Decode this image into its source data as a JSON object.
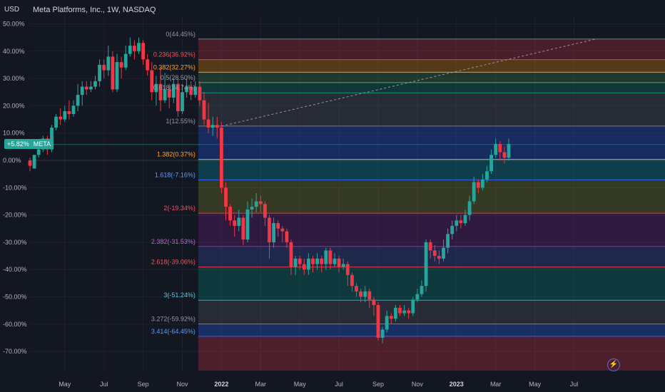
{
  "header": {
    "title": "Meta Platforms, Inc., 1W, NASDAQ",
    "currency": "USD"
  },
  "badge": {
    "value": "+5.82%",
    "symbol": "META"
  },
  "tv_icon": "lightning-icon",
  "chart_data": {
    "type": "candlestick",
    "y_unit": "percent",
    "ylim": [
      -77,
      50
    ],
    "y_ticks": [
      {
        "v": 50,
        "label": "50.00%"
      },
      {
        "v": 40,
        "label": "40.00%"
      },
      {
        "v": 30,
        "label": "30.00%"
      },
      {
        "v": 20,
        "label": "20.00%"
      },
      {
        "v": 10,
        "label": "10.00%"
      },
      {
        "v": 0,
        "label": "0.00%"
      },
      {
        "v": -10,
        "label": "-10.00%"
      },
      {
        "v": -20,
        "label": "-20.00%"
      },
      {
        "v": -30,
        "label": "-30.00%"
      },
      {
        "v": -40,
        "label": "-40.00%"
      },
      {
        "v": -50,
        "label": "-50.00%"
      },
      {
        "v": -60,
        "label": "-60.00%"
      },
      {
        "v": -70,
        "label": "-70.00%"
      }
    ],
    "x_ticks": [
      {
        "i": 8,
        "label": "May",
        "bold": false
      },
      {
        "i": 17,
        "label": "Jul",
        "bold": false
      },
      {
        "i": 26,
        "label": "Sep",
        "bold": false
      },
      {
        "i": 35,
        "label": "Nov",
        "bold": false
      },
      {
        "i": 44,
        "label": "2022",
        "bold": true
      },
      {
        "i": 53,
        "label": "Mar",
        "bold": false
      },
      {
        "i": 62,
        "label": "May",
        "bold": false
      },
      {
        "i": 71,
        "label": "Jul",
        "bold": false
      },
      {
        "i": 80,
        "label": "Sep",
        "bold": false
      },
      {
        "i": 89,
        "label": "Nov",
        "bold": false
      },
      {
        "i": 98,
        "label": "2023",
        "bold": true
      },
      {
        "i": 107,
        "label": "Mar",
        "bold": false
      },
      {
        "i": 116,
        "label": "May",
        "bold": false
      },
      {
        "i": 125,
        "label": "Jul",
        "bold": false
      }
    ],
    "current_value": 5.82,
    "candles": [
      [
        0,
        -2,
        1,
        -4,
        -3
      ],
      [
        -3,
        2,
        2,
        -3,
        -2
      ],
      [
        2,
        4,
        6,
        1,
        3
      ],
      [
        4,
        8,
        9,
        3,
        3
      ],
      [
        8,
        4,
        9,
        2,
        6
      ],
      [
        4,
        12,
        13,
        3,
        9
      ],
      [
        12,
        16,
        17,
        11,
        15
      ],
      [
        16,
        15,
        19,
        13,
        13
      ],
      [
        15,
        18,
        20,
        14,
        16
      ],
      [
        18,
        17,
        22,
        15,
        17
      ],
      [
        17,
        20,
        22,
        16,
        20
      ],
      [
        20,
        24,
        28,
        18,
        22
      ],
      [
        24,
        27,
        29,
        20,
        20
      ],
      [
        27,
        26,
        29,
        24,
        24
      ],
      [
        26,
        27,
        29,
        25,
        27
      ],
      [
        27,
        29,
        31,
        26,
        28
      ],
      [
        29,
        35,
        37,
        27,
        32
      ],
      [
        35,
        33,
        37,
        30,
        34
      ],
      [
        33,
        38,
        42,
        31,
        39
      ],
      [
        38,
        26,
        40,
        25,
        38
      ],
      [
        26,
        36,
        39,
        25,
        32
      ],
      [
        36,
        34,
        38,
        30,
        30
      ],
      [
        34,
        39,
        42,
        33,
        35
      ],
      [
        39,
        42,
        45,
        38,
        40
      ],
      [
        42,
        40,
        44,
        37,
        41
      ],
      [
        40,
        43,
        45,
        39,
        40
      ],
      [
        43,
        37,
        44,
        35,
        43
      ],
      [
        37,
        33,
        39,
        31,
        38
      ],
      [
        33,
        25,
        36,
        22,
        33
      ],
      [
        25,
        28,
        31,
        20,
        26
      ],
      [
        28,
        22,
        34,
        18,
        29
      ],
      [
        22,
        26,
        32,
        21,
        27
      ],
      [
        26,
        23,
        28,
        19,
        24
      ],
      [
        23,
        28,
        30,
        21,
        24
      ],
      [
        28,
        18,
        30,
        16,
        26
      ],
      [
        18,
        25,
        28,
        17,
        22
      ],
      [
        25,
        27,
        30,
        23,
        26
      ],
      [
        27,
        24,
        29,
        22,
        28
      ],
      [
        24,
        27,
        29,
        23,
        25
      ],
      [
        27,
        22,
        29,
        20,
        23
      ],
      [
        22,
        15,
        25,
        13,
        23
      ],
      [
        15,
        12,
        21,
        10,
        19
      ],
      [
        12,
        13,
        16,
        9,
        14
      ],
      [
        13,
        12,
        16,
        8,
        13
      ],
      [
        12,
        -10,
        14,
        -12,
        11
      ],
      [
        -10,
        -17,
        -8,
        -22,
        -12
      ],
      [
        -17,
        -22,
        -16,
        -24,
        -18
      ],
      [
        -22,
        -24,
        -20,
        -28,
        -22
      ],
      [
        -24,
        -21,
        -18,
        -26,
        -21
      ],
      [
        -21,
        -29,
        -20,
        -31,
        -24
      ],
      [
        -29,
        -18,
        -15,
        -30,
        -20
      ],
      [
        -18,
        -17,
        -14,
        -21,
        -18
      ],
      [
        -17,
        -15,
        -12,
        -19,
        -16
      ],
      [
        -15,
        -16,
        -13,
        -19,
        -17
      ],
      [
        -16,
        -21,
        -15,
        -24,
        -19
      ],
      [
        -21,
        -30,
        -20,
        -36,
        -25
      ],
      [
        -30,
        -23,
        -21,
        -32,
        -26
      ],
      [
        -23,
        -25,
        -22,
        -28,
        -25
      ],
      [
        -25,
        -26,
        -24,
        -30,
        -28
      ],
      [
        -26,
        -30,
        -25,
        -32,
        -29
      ],
      [
        -30,
        -39,
        -29,
        -42,
        -35
      ],
      [
        -39,
        -36,
        -35,
        -42,
        -37
      ],
      [
        -36,
        -38,
        -35,
        -40,
        -37
      ],
      [
        -38,
        -40,
        -36,
        -42,
        -38
      ],
      [
        -40,
        -36,
        -34,
        -42,
        -39
      ],
      [
        -36,
        -38,
        -35,
        -41,
        -37
      ],
      [
        -38,
        -36,
        -34,
        -40,
        -36
      ],
      [
        -36,
        -38,
        -35,
        -41,
        -37
      ],
      [
        -38,
        -33,
        -32,
        -40,
        -36
      ],
      [
        -33,
        -38,
        -32,
        -40,
        -37
      ],
      [
        -38,
        -36,
        -34,
        -39,
        -37
      ],
      [
        -36,
        -39,
        -35,
        -41,
        -38
      ],
      [
        -39,
        -38,
        -36,
        -40,
        -38
      ],
      [
        -38,
        -42,
        -37,
        -46,
        -44
      ],
      [
        -42,
        -46,
        -41,
        -48,
        -45
      ],
      [
        -46,
        -48,
        -45,
        -50,
        -47
      ],
      [
        -48,
        -50,
        -47,
        -52,
        -49
      ],
      [
        -50,
        -48,
        -46,
        -52,
        -50
      ],
      [
        -48,
        -51,
        -47,
        -54,
        -52
      ],
      [
        -51,
        -53,
        -50,
        -57,
        -54
      ],
      [
        -53,
        -65,
        -52,
        -66,
        -62
      ],
      [
        -65,
        -62,
        -61,
        -67,
        -64
      ],
      [
        -62,
        -57,
        -55,
        -63,
        -59
      ],
      [
        -57,
        -58,
        -56,
        -60,
        -58
      ],
      [
        -58,
        -54,
        -53,
        -59,
        -56
      ],
      [
        -54,
        -56,
        -53,
        -57,
        -55
      ],
      [
        -56,
        -55,
        -53,
        -57,
        -55
      ],
      [
        -55,
        -56,
        -54,
        -58,
        -56
      ],
      [
        -56,
        -51,
        -50,
        -57,
        -53
      ],
      [
        -51,
        -49,
        -47,
        -52,
        -50
      ],
      [
        -49,
        -46,
        -44,
        -50,
        -47
      ],
      [
        -46,
        -30,
        -29,
        -48,
        -40
      ],
      [
        -30,
        -33,
        -29,
        -36,
        -32
      ],
      [
        -33,
        -35,
        -31,
        -37,
        -34
      ],
      [
        -35,
        -36,
        -33,
        -38,
        -35
      ],
      [
        -36,
        -32,
        -29,
        -37,
        -34
      ],
      [
        -32,
        -27,
        -25,
        -34,
        -29
      ],
      [
        -27,
        -24,
        -22,
        -29,
        -25
      ],
      [
        -24,
        -22,
        -20,
        -26,
        -23
      ],
      [
        -22,
        -23,
        -20,
        -25,
        -22
      ],
      [
        -23,
        -20,
        -18,
        -24,
        -21
      ],
      [
        -20,
        -15,
        -13,
        -22,
        -17
      ],
      [
        -15,
        -8,
        -6,
        -16,
        -11
      ],
      [
        -8,
        -10,
        -7,
        -12,
        -9
      ],
      [
        -10,
        -7,
        -5,
        -11,
        -8
      ],
      [
        -7,
        -4,
        -2,
        -8,
        -5
      ],
      [
        -4,
        2,
        4,
        -5,
        -1
      ],
      [
        2,
        6,
        8,
        1,
        4
      ],
      [
        6,
        3,
        7,
        0,
        4
      ],
      [
        3,
        1,
        5,
        -1,
        3
      ],
      [
        1,
        6,
        8,
        0,
        4
      ]
    ],
    "fib_levels": [
      {
        "ratio": "0",
        "value": 44.45,
        "label": "0(44.45%)",
        "line": "#787b86",
        "fill": "rgba(242,54,69,0.24)",
        "text": "#9598a1"
      },
      {
        "ratio": "0.236",
        "value": 36.92,
        "label": "0.236(36.92%)",
        "line": "#f23645",
        "fill": "rgba(255,152,0,0.28)",
        "text": "#f7525f"
      },
      {
        "ratio": "0.382",
        "value": 32.27,
        "label": "0.382(32.27%)",
        "line": "#ff9800",
        "fill": "rgba(76,175,80,0.22)",
        "text": "#ffa726"
      },
      {
        "ratio": "0.5",
        "value": 28.5,
        "label": "0.5(28.50%)",
        "line": "#4caf50",
        "fill": "rgba(8,153,129,0.24)",
        "text": "#9598a1"
      },
      {
        "ratio": "0.618",
        "value": 24.74,
        "label": "0.618(24.74%)",
        "line": "#089981",
        "fill": "rgba(120,123,134,0.20)",
        "text": "#9598a1"
      },
      {
        "ratio": "1",
        "value": 12.55,
        "label": "1(12.55%)",
        "line": "#787b86",
        "fill": "rgba(41,98,255,0.28)",
        "text": "#9598a1"
      },
      {
        "ratio": "1.382",
        "value": 0.37,
        "label": "1.382(0.37%)",
        "line": "#ff9800",
        "fill": "rgba(0,188,212,0.24)",
        "text": "#ffa726"
      },
      {
        "ratio": "1.618",
        "value": -7.16,
        "label": "1.618(-7.16%)",
        "line": "#2962ff",
        "fill": "rgba(175,180,43,0.22)",
        "text": "#5b9cf6"
      },
      {
        "ratio": "2",
        "value": -19.34,
        "label": "2(-19.34%)",
        "line": "#f23645",
        "fill": "rgba(156,39,176,0.20)",
        "text": "#f7525f"
      },
      {
        "ratio": "2.382",
        "value": -31.53,
        "label": "2.382(-31.53%)",
        "line": "#9c27b0",
        "fill": "rgba(63,81,181,0.28)",
        "text": "#ba68c8"
      },
      {
        "ratio": "2.618",
        "value": -39.06,
        "label": "2.618(-39.06%)",
        "line": "#f23645",
        "fill": "rgba(0,150,136,0.26)",
        "text": "#f7525f"
      },
      {
        "ratio": "3",
        "value": -51.24,
        "label": "3(-51.24%)",
        "line": "#00bcd4",
        "fill": "rgba(120,123,134,0.20)",
        "text": "#4dd0e1"
      },
      {
        "ratio": "3.272",
        "value": -59.92,
        "label": "3.272(-59.92%)",
        "line": "#787b86",
        "fill": "rgba(41,98,255,0.30)",
        "text": "#9598a1"
      },
      {
        "ratio": "3.414",
        "value": -64.45,
        "label": "3.414(-64.45%)",
        "line": "#2962ff",
        "fill": "rgba(242,54,69,0.26)",
        "text": "#5b9cf6"
      }
    ],
    "fib_bottom": -77,
    "fib_start_index": 39,
    "trend_line": {
      "from": {
        "i": 44,
        "v": 12.55
      },
      "to": {
        "i": 130,
        "v": 44.45
      }
    },
    "grid": true,
    "colors": {
      "up": "#26a69a",
      "down": "#f23645",
      "background": "#131722"
    }
  }
}
